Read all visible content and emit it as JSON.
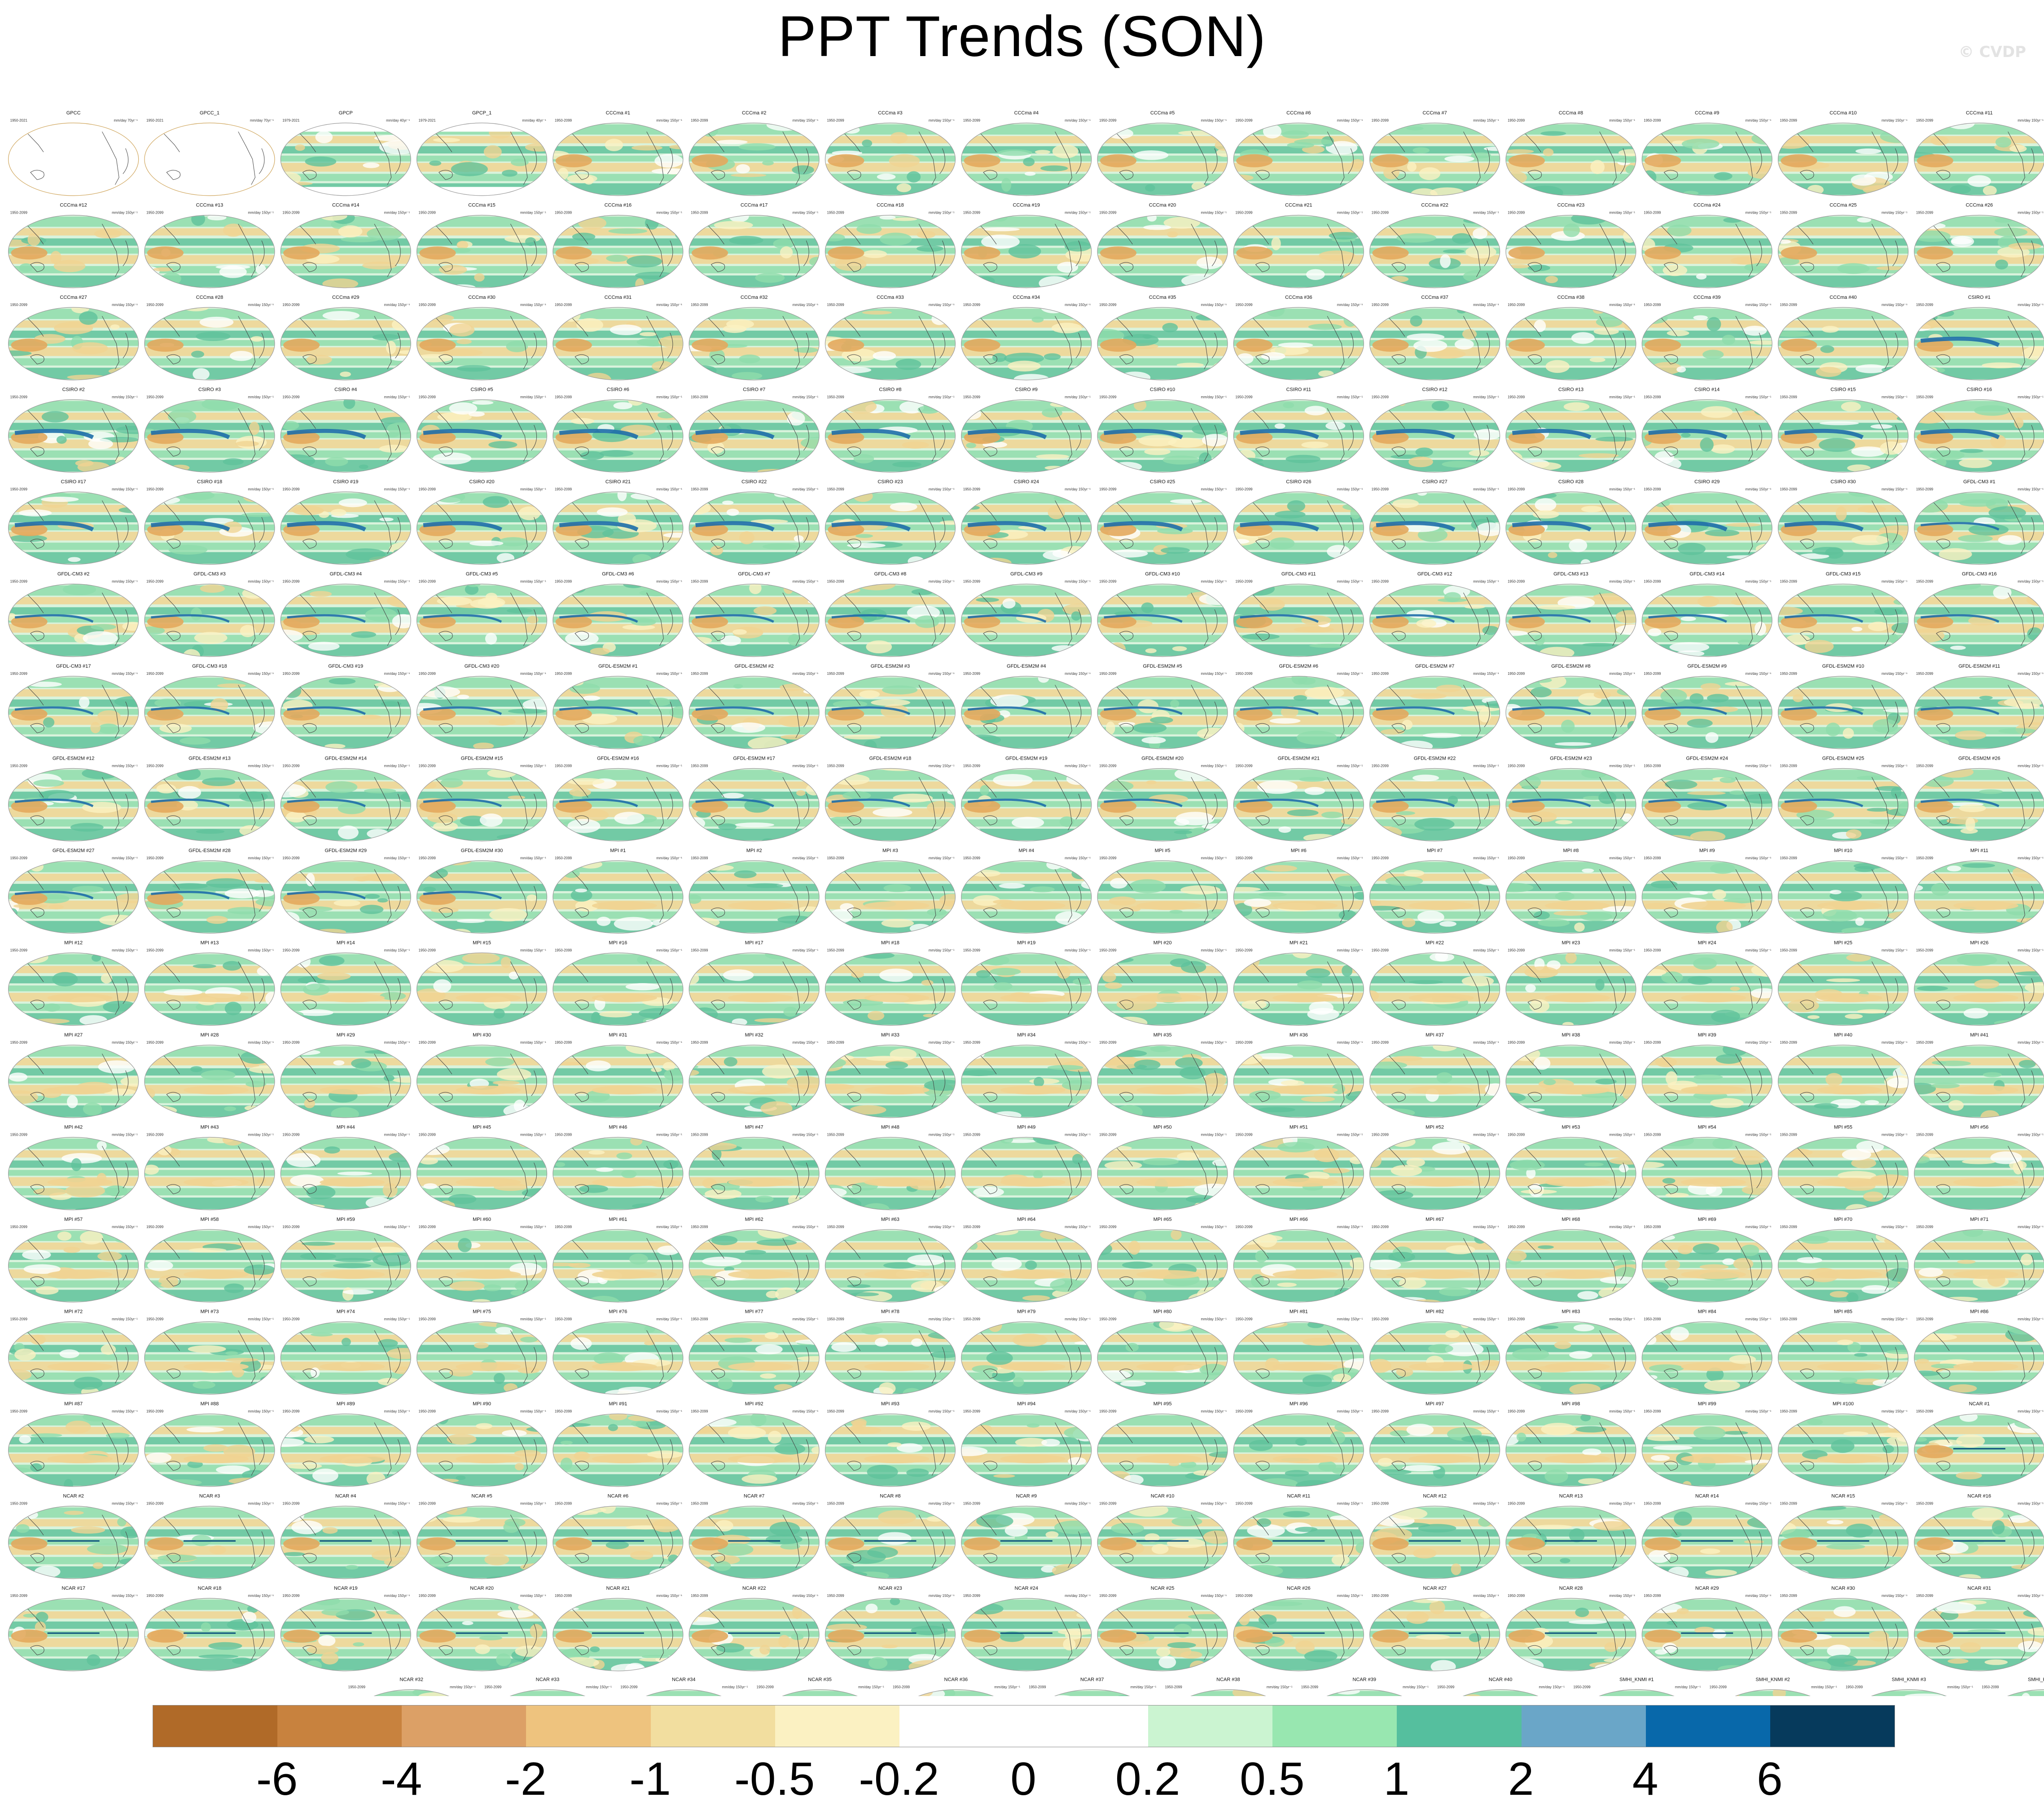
{
  "title": "PPT Trends (SON)",
  "watermark": "© CVDP",
  "colors": {
    "colorbar": [
      "#b06a28",
      "#c8823e",
      "#dca066",
      "#eec37e",
      "#f2de9f",
      "#fbf1c2",
      "#ffffff",
      "#ffffff",
      "#cbf4d1",
      "#98e7b0",
      "#55bf9e",
      "#6aa6c8",
      "#0868aa",
      "#063a5c"
    ],
    "ocean_wet": "#8fdcab",
    "ocean_wet2": "#5fc29b",
    "ocean_dry": "#f0d392",
    "ocean_dry2": "#e3a85d",
    "strong_wet": "#1e6ea8",
    "map_outline": "#444444"
  },
  "chart_data": {
    "type": "heatmap",
    "title": "PPT Trends (SON)",
    "colorbar_labels": [
      "-6",
      "-4",
      "-2",
      "-1",
      "-0.5",
      "-0.2",
      "0",
      "0.2",
      "0.5",
      "1",
      "2",
      "4",
      "6"
    ],
    "panels": [
      {
        "name": "GPCC",
        "period": "1950-2021",
        "units": "mm/day 70yr⁻¹",
        "style": "obs"
      },
      {
        "name": "GPCC_1",
        "period": "1950-2021",
        "units": "mm/day 70yr⁻¹",
        "style": "obs"
      },
      {
        "name": "GPCP",
        "period": "1979-2021",
        "units": "mm/day 40yr⁻¹",
        "style": "gpcp"
      },
      {
        "name": "GPCP_1",
        "period": "1979-2021",
        "units": "mm/day 40yr⁻¹",
        "style": "gpcp"
      }
    ],
    "ensembles": [
      {
        "model": "CCCma",
        "count": 40,
        "period": "1950-2099",
        "units": "mm/day 150yr⁻¹",
        "style": "cccma"
      },
      {
        "model": "CSIRO",
        "count": 30,
        "period": "1950-2099",
        "units": "mm/day 150yr⁻¹",
        "style": "csiro"
      },
      {
        "model": "GFDL-CM3",
        "count": 20,
        "period": "1950-2099",
        "units": "mm/day 150yr⁻¹",
        "style": "gfdlcm3"
      },
      {
        "model": "GFDL-ESM2M",
        "count": 30,
        "period": "1950-2099",
        "units": "mm/day 150yr⁻¹",
        "style": "gfdlesm"
      },
      {
        "model": "MPI",
        "count": 100,
        "period": "1950-2099",
        "units": "mm/day 150yr⁻¹",
        "style": "mpi"
      },
      {
        "model": "NCAR",
        "count": 40,
        "period": "1950-2099",
        "units": "mm/day 150yr⁻¹",
        "style": "ncar"
      },
      {
        "model": "SMHI_KNMI",
        "count": 16,
        "period": "1950-2099",
        "units": "mm/day 150yr⁻¹",
        "style": "smhi"
      }
    ]
  }
}
